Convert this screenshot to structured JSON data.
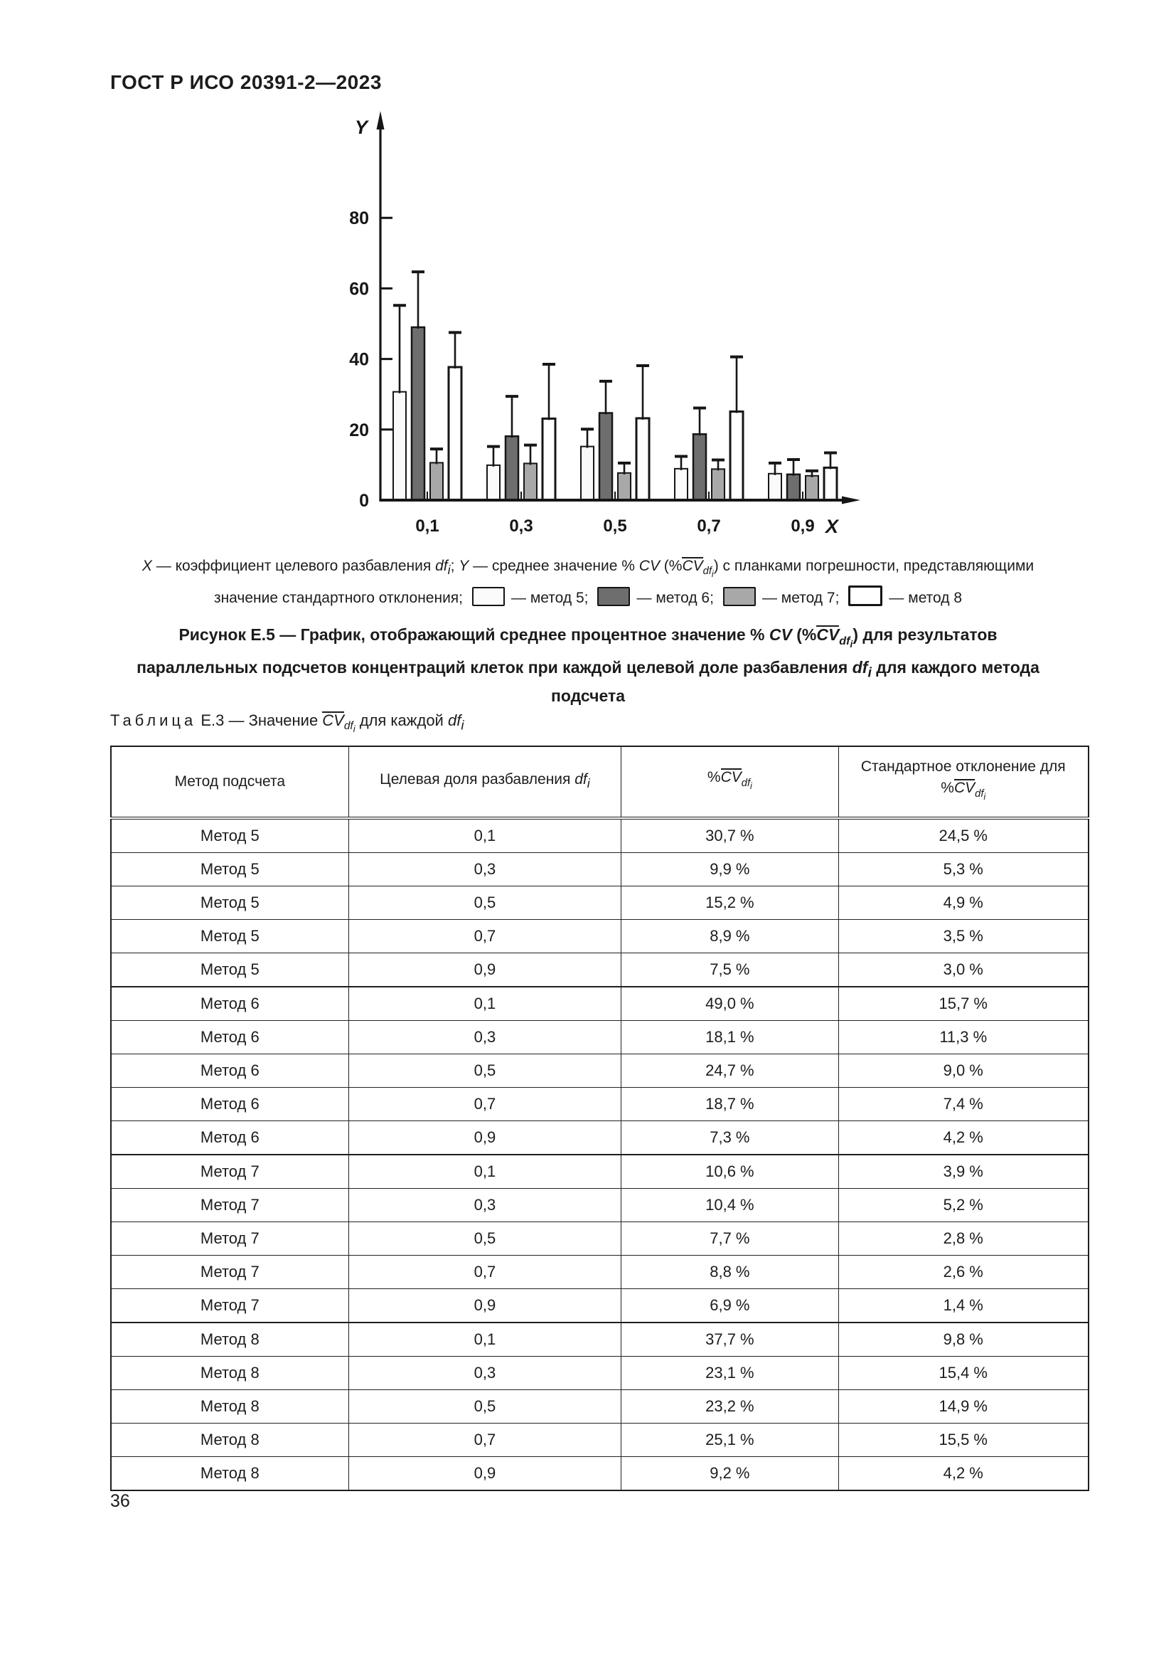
{
  "page": {
    "doc_code": "ГОСТ Р ИСО 20391-2—2023",
    "page_number": "36"
  },
  "chart_data": {
    "type": "bar",
    "x_axis_label": "X",
    "y_axis_label": "Y",
    "categories": [
      "0,1",
      "0,3",
      "0,5",
      "0,7",
      "0,9"
    ],
    "y_ticks": [
      0,
      20,
      40,
      60,
      80
    ],
    "ylim": [
      0,
      88
    ],
    "grid": false,
    "legend_position": "in-caption",
    "series": [
      {
        "name": "метод 5",
        "fill": "#fafafa",
        "stroke": "#161616",
        "stroke_width": 2,
        "values": [
          30.7,
          9.9,
          15.2,
          8.9,
          7.5
        ],
        "errors": [
          24.5,
          5.3,
          4.9,
          3.5,
          3.0
        ]
      },
      {
        "name": "метод 6",
        "fill": "#6e6e6e",
        "stroke": "#161616",
        "stroke_width": 2.5,
        "values": [
          49.0,
          18.1,
          24.7,
          18.7,
          7.3
        ],
        "errors": [
          15.7,
          11.3,
          9.0,
          7.4,
          4.2
        ]
      },
      {
        "name": "метод 7",
        "fill": "#a8a8a8",
        "stroke": "#161616",
        "stroke_width": 2,
        "values": [
          10.6,
          10.4,
          7.7,
          8.8,
          6.9
        ],
        "errors": [
          3.9,
          5.2,
          2.8,
          2.6,
          1.4
        ]
      },
      {
        "name": "метод 8",
        "fill": "#ffffff",
        "stroke": "#161616",
        "stroke_width": 3,
        "values": [
          37.7,
          23.1,
          23.2,
          25.1,
          9.2
        ],
        "errors": [
          9.8,
          15.4,
          14.9,
          15.5,
          4.2
        ]
      }
    ]
  },
  "caption": {
    "x_var": "X",
    "x_text": " — коэффициент целевого разбавления ",
    "df": "df",
    "df_i": "i",
    "sep1": "; ",
    "y_var": "Y",
    "y_text": " — среднее значение % ",
    "cv": "CV",
    "paren_open": " (%",
    "cv_bar": "CV",
    "sub_df": "df",
    "sub_i": "i",
    "paren_close": ")",
    "tail1": " с планками погрешности, представляющими",
    "line2_lead": "значение стандартного отклонения;",
    "legend_5": "— метод 5;",
    "legend_6": "— метод 6;",
    "legend_7": "— метод 7;",
    "legend_8": "— метод 8"
  },
  "figure_caption": {
    "l1a": "Рисунок Е.5 — График, отображающий среднее процентное значение % ",
    "l1_cv": "CV",
    "l1_open": " (%",
    "l1_cvbar": "CV",
    "l1_df": "df",
    "l1_i": "i",
    "l1_close": ") ",
    "l1b": "для результатов",
    "l2a": "параллельных подсчетов концентраций клеток при каждой целевой доле разбавления ",
    "l2_df": "df",
    "l2_i": "i",
    "l2b": " для каждого метода",
    "l3": "подсчета"
  },
  "table": {
    "label": "Таблица",
    "title_mid": " Е.3 — Значение ",
    "title_cvbar": "CV",
    "title_df": "df",
    "title_i": "i",
    "title_tail": " для каждой ",
    "title_df2": "df",
    "title_i2": "i",
    "headers": {
      "col1": "Метод подсчета",
      "col2_text": "Целевая доля разбавления ",
      "col2_df": "df",
      "col2_i": "i",
      "col3_pct": "%",
      "col3_cv": "CV",
      "col3_df": "df",
      "col3_i": "i",
      "col4_line1": "Стандартное отклонение для",
      "col4_pct": "%",
      "col4_cv": "CV",
      "col4_df": "df",
      "col4_i": "i"
    },
    "rows": [
      [
        "Метод 5",
        "0,1",
        "30,7 %",
        "24,5 %"
      ],
      [
        "Метод 5",
        "0,3",
        "9,9 %",
        "5,3 %"
      ],
      [
        "Метод 5",
        "0,5",
        "15,2 %",
        "4,9 %"
      ],
      [
        "Метод 5",
        "0,7",
        "8,9 %",
        "3,5 %"
      ],
      [
        "Метод 5",
        "0,9",
        "7,5 %",
        "3,0 %"
      ],
      [
        "Метод 6",
        "0,1",
        "49,0 %",
        "15,7 %"
      ],
      [
        "Метод 6",
        "0,3",
        "18,1 %",
        "11,3 %"
      ],
      [
        "Метод 6",
        "0,5",
        "24,7 %",
        "9,0 %"
      ],
      [
        "Метод 6",
        "0,7",
        "18,7 %",
        "7,4 %"
      ],
      [
        "Метод 6",
        "0,9",
        "7,3 %",
        "4,2 %"
      ],
      [
        "Метод 7",
        "0,1",
        "10,6 %",
        "3,9 %"
      ],
      [
        "Метод 7",
        "0,3",
        "10,4 %",
        "5,2 %"
      ],
      [
        "Метод 7",
        "0,5",
        "7,7 %",
        "2,8 %"
      ],
      [
        "Метод 7",
        "0,7",
        "8,8 %",
        "2,6 %"
      ],
      [
        "Метод 7",
        "0,9",
        "6,9 %",
        "1,4 %"
      ],
      [
        "Метод 8",
        "0,1",
        "37,7 %",
        "9,8 %"
      ],
      [
        "Метод 8",
        "0,3",
        "23,1 %",
        "15,4 %"
      ],
      [
        "Метод 8",
        "0,5",
        "23,2 %",
        "14,9 %"
      ],
      [
        "Метод 8",
        "0,7",
        "25,1 %",
        "15,5 %"
      ],
      [
        "Метод 8",
        "0,9",
        "9,2 %",
        "4,2 %"
      ]
    ]
  }
}
